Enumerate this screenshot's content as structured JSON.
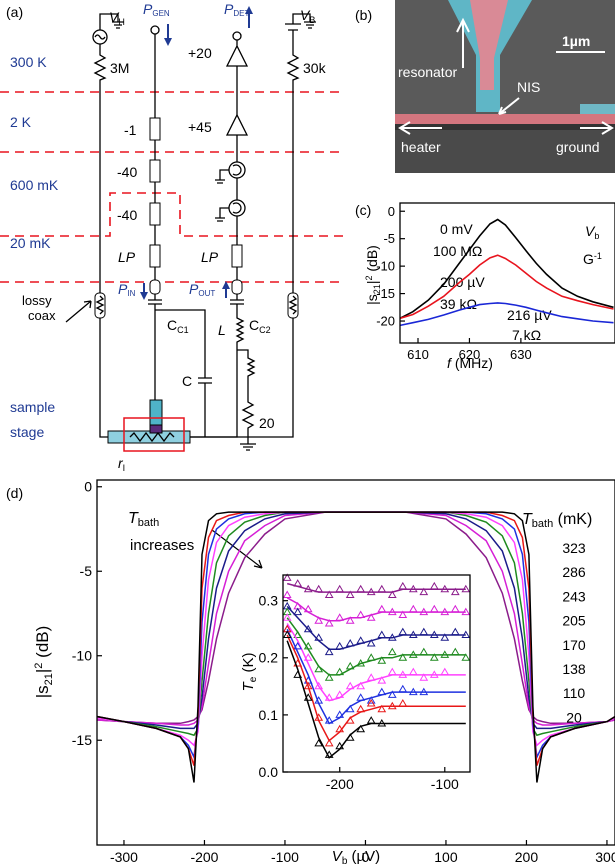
{
  "panel_a": {
    "label": "(a)",
    "stages": [
      "300 K",
      "2 K",
      "600 mK",
      "20 mK"
    ],
    "sample_stage": [
      "sample",
      "stage"
    ],
    "lossy_coax": [
      "lossy",
      "coax"
    ],
    "v_h": [
      "V",
      "H"
    ],
    "p_gen": [
      "P",
      "GEN"
    ],
    "p_det": [
      "P",
      "DET"
    ],
    "v_b": [
      "V",
      "B"
    ],
    "r_heater": "3M",
    "r_bias": "30k",
    "attenuators": [
      "-1",
      "-40",
      "-40"
    ],
    "amplifiers": [
      "+20",
      "+45"
    ],
    "filters": [
      "LP",
      "LP"
    ],
    "p_in": [
      "P",
      "IN"
    ],
    "p_out": [
      "P",
      "OUT"
    ],
    "c_c1": [
      "C",
      "C1"
    ],
    "c_c2": [
      "C",
      "C2"
    ],
    "inductor": "L",
    "capacitor": "C",
    "resistor": "20",
    "r_i": [
      "r",
      "I"
    ]
  },
  "panel_b": {
    "label": "(b)",
    "scale": "1µm",
    "resonator": "resonator",
    "nis": "NIS",
    "heater": "heater",
    "ground": "ground"
  },
  "chart_data": [
    {
      "type": "line",
      "label": "(c)",
      "x_label": [
        "f",
        " (MHz)"
      ],
      "y_label": [
        "|s",
        "21",
        "|",
        "2",
        " (dB)"
      ],
      "legend_title": [
        "V",
        "b"
      ],
      "legend_title2": [
        "G",
        "-1"
      ],
      "x": [
        606.5,
        609,
        612,
        615,
        618,
        620,
        622,
        624,
        625.5,
        627,
        629,
        631,
        633,
        635,
        638,
        641,
        644,
        648
      ],
      "xlim": [
        606.5,
        648.3
      ],
      "xticks": [
        610,
        620,
        630
      ],
      "ylim": [
        -24,
        1.5
      ],
      "yticks": [
        -20,
        -15,
        -10,
        -5,
        0
      ],
      "series": [
        {
          "name": "0 mV",
          "resistance": "100 MΩ",
          "color": "#000000",
          "values": [
            -19.5,
            -18.3,
            -16.2,
            -13.3,
            -9.5,
            -7,
            -4.5,
            -2.3,
            -1.5,
            -2.5,
            -4.8,
            -7.2,
            -9.5,
            -11.5,
            -14,
            -15.5,
            -16.5,
            -17.5
          ]
        },
        {
          "name": "200 µV",
          "resistance": "39 kΩ",
          "color": "#e8141e",
          "values": [
            -19.5,
            -18.8,
            -17.3,
            -15.5,
            -13,
            -11.5,
            -9.8,
            -8.5,
            -8,
            -8.6,
            -9.8,
            -11.3,
            -12.8,
            -14,
            -15.5,
            -16.3,
            -17,
            -17.8
          ]
        },
        {
          "name": "216 µV",
          "resistance": "7 kΩ",
          "color": "#1a27d6",
          "values": [
            -20.8,
            -20.3,
            -19.7,
            -18.9,
            -18,
            -17.5,
            -17,
            -16.8,
            -16.7,
            -16.8,
            -17.1,
            -17.5,
            -18,
            -18.5,
            -19.2,
            -19.6,
            -20,
            -20.3
          ]
        }
      ]
    },
    {
      "type": "line",
      "label": "(d)",
      "x_label": [
        "V",
        "b",
        " (µV)"
      ],
      "y_label": [
        "|s",
        "21",
        "|",
        "2",
        " (dB)"
      ],
      "legend_title": [
        "T",
        "bath",
        " (mK)"
      ],
      "annotation": [
        "T",
        "bath",
        "increases"
      ],
      "x": [
        -333,
        -300,
        -260,
        -230,
        -220,
        -213,
        -208,
        -203,
        -195,
        -185,
        -170,
        -150,
        -125,
        -100,
        -50,
        0,
        50,
        100,
        125,
        150,
        170,
        185,
        195,
        203,
        208,
        213,
        220,
        230,
        260,
        300,
        310
      ],
      "xlim": [
        -333.5,
        310
      ],
      "xticks": [
        -300,
        -200,
        -100,
        0,
        100,
        200,
        300
      ],
      "ylim": [
        -21.2,
        0.4
      ],
      "yticks": [
        -15,
        -10,
        -5,
        0
      ],
      "series": [
        {
          "name": "323",
          "color": "#8b1c8b",
          "values": [
            -13.8,
            -13.9,
            -14,
            -14,
            -13.9,
            -13.8,
            -13.6,
            -13.2,
            -11.5,
            -9,
            -6.3,
            -4.2,
            -2.8,
            -1.9,
            -1.5,
            -1.5,
            -1.5,
            -1.9,
            -2.8,
            -4.2,
            -6.3,
            -9,
            -11.5,
            -13.2,
            -13.6,
            -13.8,
            -13.9,
            -14,
            -14,
            -13.9,
            -13.8
          ]
        },
        {
          "name": "286",
          "color": "#d61fd6",
          "values": [
            -13.8,
            -13.9,
            -14,
            -14.1,
            -14.1,
            -14,
            -13.8,
            -13,
            -10.5,
            -7.5,
            -5,
            -3.2,
            -2.3,
            -1.7,
            -1.5,
            -1.5,
            -1.5,
            -1.7,
            -2.3,
            -3.2,
            -5,
            -7.5,
            -10.5,
            -13,
            -13.8,
            -14,
            -14.1,
            -14.1,
            -14,
            -13.9,
            -13.8
          ]
        },
        {
          "name": "243",
          "color": "#1b1b8a",
          "values": [
            -13.7,
            -13.9,
            -14.1,
            -14.3,
            -14.3,
            -14.3,
            -14,
            -12.5,
            -9,
            -6,
            -3.8,
            -2.6,
            -1.9,
            -1.6,
            -1.5,
            -1.5,
            -1.5,
            -1.6,
            -1.9,
            -2.6,
            -3.8,
            -6,
            -9,
            -12.5,
            -14,
            -14.3,
            -14.3,
            -14.3,
            -14.1,
            -13.9,
            -13.7
          ]
        },
        {
          "name": "205",
          "color": "#1f8a1f",
          "values": [
            -13.7,
            -13.9,
            -14.2,
            -14.5,
            -14.6,
            -14.7,
            -14.3,
            -11.5,
            -7.5,
            -4.5,
            -2.9,
            -2.1,
            -1.7,
            -1.5,
            -1.5,
            -1.5,
            -1.5,
            -1.5,
            -1.7,
            -2.1,
            -2.9,
            -4.5,
            -7.5,
            -11.5,
            -14.3,
            -14.7,
            -14.6,
            -14.5,
            -14.2,
            -13.9,
            -13.7
          ]
        },
        {
          "name": "170",
          "color": "#ff40ff",
          "values": [
            -13.7,
            -13.9,
            -14.3,
            -14.7,
            -15,
            -15.3,
            -14.5,
            -10,
            -5.5,
            -3.3,
            -2.3,
            -1.8,
            -1.6,
            -1.5,
            -1.5,
            -1.5,
            -1.5,
            -1.5,
            -1.6,
            -1.8,
            -2.3,
            -3.3,
            -5.5,
            -10,
            -14.5,
            -15.3,
            -15,
            -14.7,
            -14.3,
            -13.9,
            -13.7
          ]
        },
        {
          "name": "138",
          "color": "#1f30e0",
          "values": [
            -13.6,
            -13.9,
            -14.3,
            -14.8,
            -15.3,
            -16,
            -14,
            -8,
            -4,
            -2.5,
            -1.9,
            -1.6,
            -1.5,
            -1.5,
            -1.5,
            -1.5,
            -1.5,
            -1.5,
            -1.5,
            -1.6,
            -1.9,
            -2.5,
            -4,
            -8,
            -14,
            -16,
            -15.3,
            -14.8,
            -14.3,
            -13.9,
            -13.6
          ]
        },
        {
          "name": "110",
          "color": "#e81818",
          "values": [
            -13.6,
            -13.9,
            -14.3,
            -14.8,
            -15.5,
            -16.5,
            -13.5,
            -6,
            -3,
            -2,
            -1.7,
            -1.5,
            -1.5,
            -1.5,
            -1.5,
            -1.5,
            -1.5,
            -1.5,
            -1.5,
            -1.5,
            -1.7,
            -2,
            -3,
            -6,
            -13.5,
            -16.5,
            -15.5,
            -14.8,
            -14.3,
            -13.9,
            -13.6
          ]
        },
        {
          "name": "20",
          "color": "#000000",
          "values": [
            -13.6,
            -13.9,
            -14.3,
            -14.8,
            -15.5,
            -17.5,
            -13,
            -4,
            -2,
            -1.6,
            -1.5,
            -1.5,
            -1.5,
            -1.5,
            -1.5,
            -1.5,
            -1.5,
            -1.5,
            -1.5,
            -1.5,
            -1.5,
            -1.6,
            -2,
            -4,
            -13,
            -17.5,
            -15.5,
            -14.8,
            -14.3,
            -13.9,
            -13.6
          ]
        }
      ]
    },
    {
      "type": "line",
      "y_label": [
        "T",
        "e",
        " (K)"
      ],
      "x": [
        -250,
        -240,
        -230,
        -220,
        -210,
        -200,
        -190,
        -180,
        -170,
        -160,
        -150,
        -140,
        -130,
        -120,
        -110,
        -100,
        -90,
        -80
      ],
      "xlim": [
        -254,
        -76
      ],
      "xticks": [
        -200,
        -100
      ],
      "ylim": [
        0,
        0.345
      ],
      "yticks": [
        {
          "value": 0,
          "label": "0.0"
        },
        0.1,
        0.2,
        0.3
      ],
      "series": [
        {
          "color": "#8b1c8b",
          "values": [
            0.33,
            0.325,
            0.32,
            0.315,
            0.315,
            0.315,
            0.315,
            0.315,
            0.315,
            0.315,
            0.315,
            0.32,
            0.32,
            0.32,
            0.32,
            0.32,
            0.32,
            0.32
          ],
          "measured": [
            0.34,
            0.33,
            0.32,
            0.32,
            0.31,
            0.32,
            0.31,
            0.32,
            0.315,
            0.32,
            0.31,
            0.325,
            0.32,
            0.315,
            0.325,
            0.32,
            0.315,
            0.32
          ]
        },
        {
          "color": "#d61fd6",
          "values": [
            0.305,
            0.295,
            0.28,
            0.27,
            0.265,
            0.265,
            0.27,
            0.27,
            0.275,
            0.28,
            0.28,
            0.28,
            0.28,
            0.28,
            0.28,
            0.28,
            0.28,
            0.28
          ],
          "measured": [
            0.31,
            0.29,
            0.285,
            0.265,
            0.26,
            0.27,
            0.265,
            0.275,
            0.27,
            0.285,
            0.28,
            0.275,
            0.285,
            0.28,
            0.285,
            0.28,
            0.285,
            0.28
          ]
        },
        {
          "color": "#1b1b8a",
          "values": [
            0.29,
            0.27,
            0.25,
            0.23,
            0.215,
            0.215,
            0.22,
            0.225,
            0.23,
            0.235,
            0.235,
            0.24,
            0.24,
            0.24,
            0.24,
            0.24,
            0.24,
            0.24
          ],
          "measured": [
            0.29,
            0.28,
            0.25,
            0.235,
            0.21,
            0.22,
            0.225,
            0.23,
            0.225,
            0.24,
            0.235,
            0.245,
            0.24,
            0.245,
            0.24,
            0.235,
            0.245,
            0.24
          ]
        },
        {
          "color": "#1f8a1f",
          "values": [
            0.27,
            0.245,
            0.215,
            0.185,
            0.17,
            0.17,
            0.18,
            0.19,
            0.195,
            0.2,
            0.2,
            0.205,
            0.205,
            0.205,
            0.205,
            0.205,
            0.205,
            0.205
          ],
          "measured": [
            0.28,
            0.24,
            0.22,
            0.18,
            0.165,
            0.175,
            0.185,
            0.19,
            0.2,
            0.195,
            0.21,
            0.2,
            0.205,
            0.21,
            0.2,
            0.205,
            0.21,
            0.2
          ]
        },
        {
          "color": "#ff40ff",
          "values": [
            0.26,
            0.23,
            0.19,
            0.15,
            0.125,
            0.13,
            0.145,
            0.155,
            0.16,
            0.165,
            0.17,
            0.17,
            0.17,
            0.17,
            0.17,
            0.17,
            0.17,
            0.17
          ],
          "measured": [
            0.27,
            0.22,
            0.2,
            0.15,
            0.13,
            0.135,
            0.15,
            0.15,
            0.165,
            0.16,
            0.175,
            0.17,
            0.175,
            0.165,
            0.17,
            0.175,
            null,
            null
          ]
        },
        {
          "color": "#1f30e0",
          "values": [
            0.25,
            0.21,
            0.17,
            0.12,
            0.085,
            0.095,
            0.115,
            0.125,
            0.13,
            0.135,
            0.14,
            0.14,
            0.14,
            0.14,
            0.14,
            0.14,
            0.14,
            0.14
          ],
          "measured": [
            0.25,
            0.22,
            0.16,
            0.125,
            0.09,
            0.1,
            0.11,
            0.13,
            0.125,
            0.14,
            0.135,
            0.145,
            0.14,
            0.14,
            null,
            null,
            null,
            null
          ]
        },
        {
          "color": "#e81818",
          "values": [
            0.24,
            0.2,
            0.15,
            0.09,
            0.055,
            0.07,
            0.095,
            0.105,
            0.11,
            0.115,
            0.115,
            0.115,
            0.115,
            0.115,
            0.115,
            0.115,
            0.115,
            0.115
          ],
          "measured": [
            0.25,
            0.19,
            0.15,
            0.095,
            0.05,
            0.075,
            0.09,
            0.11,
            0.12,
            0.11,
            0.115,
            0.12,
            null,
            null,
            null,
            null,
            null,
            null
          ]
        },
        {
          "color": "#000000",
          "values": [
            0.23,
            0.18,
            0.12,
            0.06,
            0.025,
            0.04,
            0.065,
            0.08,
            0.085,
            0.085,
            0.085,
            0.085,
            0.085,
            0.085,
            0.085,
            0.085,
            0.085,
            0.085
          ],
          "measured": [
            0.24,
            0.17,
            0.13,
            0.05,
            0.03,
            0.045,
            0.06,
            0.075,
            0.09,
            0.085,
            null,
            null,
            null,
            null,
            null,
            null,
            null,
            null
          ]
        }
      ]
    }
  ]
}
